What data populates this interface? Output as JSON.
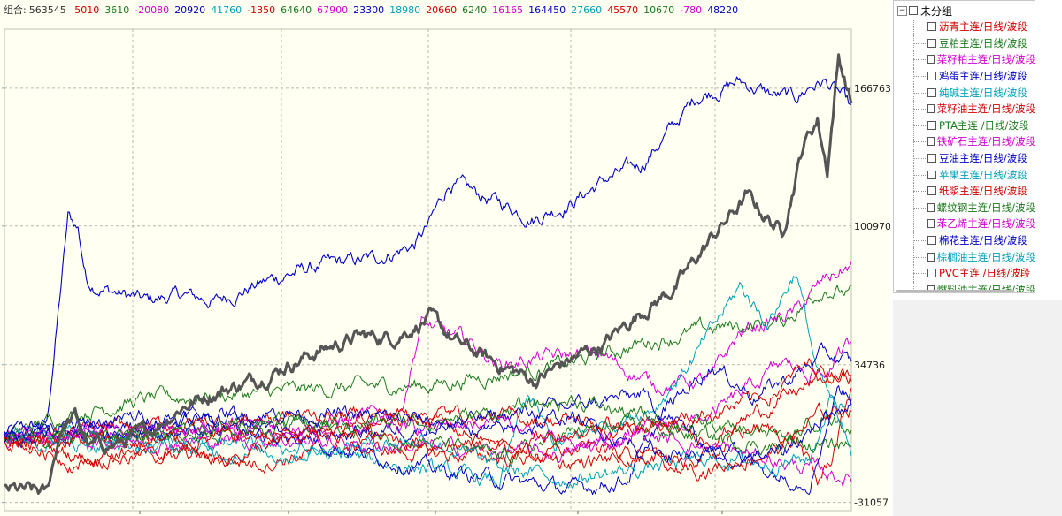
{
  "summary": {
    "label": "组合:",
    "total": "563545",
    "items": [
      {
        "text": "5010",
        "color": "#d40000"
      },
      {
        "text": "3610",
        "color": "#1a7a1a"
      },
      {
        "text": "-20080",
        "color": "#d000d0"
      },
      {
        "text": "20920",
        "color": "#0000c0"
      },
      {
        "text": "41760",
        "color": "#00a0b8"
      },
      {
        "text": "-1350",
        "color": "#d40000"
      },
      {
        "text": "64640",
        "color": "#1a7a1a"
      },
      {
        "text": "67900",
        "color": "#d000d0"
      },
      {
        "text": "23300",
        "color": "#0000c0"
      },
      {
        "text": "18980",
        "color": "#00a0b8"
      },
      {
        "text": "20660",
        "color": "#d40000"
      },
      {
        "text": "6240",
        "color": "#1a7a1a"
      },
      {
        "text": "16165",
        "color": "#d000d0"
      },
      {
        "text": "164450",
        "color": "#0000c0"
      },
      {
        "text": "27660",
        "color": "#00a0b8"
      },
      {
        "text": "45570",
        "color": "#d40000"
      },
      {
        "text": "10670",
        "color": "#1a7a1a"
      },
      {
        "text": "-780",
        "color": "#d000d0"
      },
      {
        "text": "48220",
        "color": "#0000c0"
      }
    ]
  },
  "tree": {
    "root_label": "未分组",
    "items": [
      {
        "label": "沥青主连/日线/波段",
        "color": "#d40000"
      },
      {
        "label": "豆粕主连/日线/波段",
        "color": "#1a7a1a"
      },
      {
        "label": "菜籽粕主连/日线/波段",
        "color": "#d000d0"
      },
      {
        "label": "鸡蛋主连/日线/波段",
        "color": "#0000c0"
      },
      {
        "label": "纯碱主连/日线/波段",
        "color": "#00a0b8"
      },
      {
        "label": "菜籽油主连/日线/波段",
        "color": "#d40000"
      },
      {
        "label": "PTA主连 /日线/波段",
        "color": "#1a7a1a"
      },
      {
        "label": "铁矿石主连/日线/波段",
        "color": "#d000d0"
      },
      {
        "label": "豆油主连/日线/波段",
        "color": "#0000c0"
      },
      {
        "label": "苹果主连/日线/波段",
        "color": "#00a0b8"
      },
      {
        "label": "纸浆主连/日线/波段",
        "color": "#d40000"
      },
      {
        "label": "螺纹钢主连/日线/波段",
        "color": "#1a7a1a"
      },
      {
        "label": "苯乙烯主连/日线/波段",
        "color": "#d000d0"
      },
      {
        "label": "棉花主连/日线/波段",
        "color": "#0000c0"
      },
      {
        "label": "棕榈油主连/日线/波段",
        "color": "#00a0b8"
      },
      {
        "label": "PVC主连 /日线/波段",
        "color": "#d40000"
      },
      {
        "label": "燃料油主连/日线/波段",
        "color": "#1a7a1a"
      }
    ]
  },
  "chart_data": {
    "type": "line",
    "y_ticks": [
      "166763",
      "100970",
      "34736",
      "-31057"
    ],
    "y_tick_values": [
      166763,
      100970,
      34736,
      -31057
    ],
    "ylim": [
      -35000,
      195000
    ],
    "n_points": 600,
    "grid": true,
    "series": [
      {
        "color": "#0000c8",
        "width": 1.1,
        "anchors": [
          [
            0,
            2000
          ],
          [
            30,
            6000
          ],
          [
            45,
            105000
          ],
          [
            52,
            100000
          ],
          [
            58,
            75000
          ],
          [
            75,
            70000
          ],
          [
            100,
            65000
          ],
          [
            125,
            68000
          ],
          [
            150,
            65000
          ],
          [
            175,
            72000
          ],
          [
            200,
            78000
          ],
          [
            225,
            82000
          ],
          [
            260,
            85000
          ],
          [
            290,
            92000
          ],
          [
            300,
            101000
          ],
          [
            315,
            122000
          ],
          [
            330,
            117000
          ],
          [
            350,
            112000
          ],
          [
            375,
            105000
          ],
          [
            400,
            112000
          ],
          [
            425,
            123000
          ],
          [
            450,
            130000
          ],
          [
            475,
            150000
          ],
          [
            490,
            163000
          ],
          [
            520,
            170000
          ],
          [
            545,
            163000
          ],
          [
            560,
            162000
          ],
          [
            570,
            168000
          ],
          [
            580,
            170000
          ],
          [
            592,
            163000
          ],
          [
            599,
            156000
          ]
        ]
      },
      {
        "color": "#555555",
        "width": 3,
        "anchors": [
          [
            0,
            -25000
          ],
          [
            30,
            -27000
          ],
          [
            40,
            5000
          ],
          [
            50,
            10000
          ],
          [
            60,
            -5000
          ],
          [
            80,
            -3000
          ],
          [
            100,
            2000
          ],
          [
            125,
            15000
          ],
          [
            150,
            22000
          ],
          [
            175,
            27000
          ],
          [
            200,
            35000
          ],
          [
            225,
            42000
          ],
          [
            250,
            48000
          ],
          [
            275,
            48000
          ],
          [
            300,
            57000
          ],
          [
            320,
            45000
          ],
          [
            340,
            38000
          ],
          [
            375,
            27000
          ],
          [
            400,
            37000
          ],
          [
            425,
            45000
          ],
          [
            450,
            60000
          ],
          [
            475,
            72000
          ],
          [
            500,
            95000
          ],
          [
            525,
            115000
          ],
          [
            535,
            108000
          ],
          [
            550,
            98000
          ],
          [
            565,
            140000
          ],
          [
            575,
            152000
          ],
          [
            582,
            128000
          ],
          [
            590,
            182000
          ],
          [
            599,
            160000
          ]
        ]
      },
      {
        "color": "#1a7a1a",
        "width": 1,
        "anchors": [
          [
            0,
            0
          ],
          [
            50,
            12000
          ],
          [
            100,
            18000
          ],
          [
            150,
            20000
          ],
          [
            200,
            22000
          ],
          [
            250,
            24000
          ],
          [
            300,
            25000
          ],
          [
            350,
            30000
          ],
          [
            400,
            35000
          ],
          [
            450,
            45000
          ],
          [
            500,
            52000
          ],
          [
            550,
            55000
          ],
          [
            580,
            72000
          ],
          [
            599,
            68000
          ]
        ]
      },
      {
        "color": "#d000d0",
        "width": 1,
        "anchors": [
          [
            0,
            0
          ],
          [
            80,
            2000
          ],
          [
            160,
            5000
          ],
          [
            240,
            8000
          ],
          [
            280,
            12000
          ],
          [
            295,
            55000
          ],
          [
            310,
            50000
          ],
          [
            330,
            45000
          ],
          [
            350,
            35000
          ],
          [
            380,
            38000
          ],
          [
            420,
            40000
          ],
          [
            460,
            25000
          ],
          [
            500,
            28000
          ],
          [
            520,
            50000
          ],
          [
            540,
            55000
          ],
          [
            560,
            60000
          ],
          [
            580,
            75000
          ],
          [
            599,
            82000
          ]
        ]
      },
      {
        "color": "#00a0b8",
        "width": 1,
        "anchors": [
          [
            0,
            0
          ],
          [
            100,
            -2000
          ],
          [
            200,
            -5000
          ],
          [
            300,
            -15000
          ],
          [
            350,
            -22000
          ],
          [
            370,
            20000
          ],
          [
            390,
            -5000
          ],
          [
            420,
            5000
          ],
          [
            460,
            15000
          ],
          [
            490,
            40000
          ],
          [
            520,
            72000
          ],
          [
            540,
            55000
          ],
          [
            560,
            80000
          ],
          [
            575,
            30000
          ],
          [
            590,
            10000
          ],
          [
            599,
            20000
          ]
        ]
      },
      {
        "color": "#d40000",
        "width": 1,
        "anchors": [
          [
            0,
            0
          ],
          [
            60,
            -10000
          ],
          [
            120,
            -8000
          ],
          [
            180,
            -12000
          ],
          [
            240,
            -5000
          ],
          [
            300,
            -8000
          ],
          [
            360,
            -10000
          ],
          [
            420,
            -5000
          ],
          [
            480,
            -15000
          ],
          [
            530,
            5000
          ],
          [
            560,
            0
          ],
          [
            575,
            -22000
          ],
          [
            585,
            -10000
          ],
          [
            599,
            25000
          ]
        ]
      },
      {
        "color": "#0000c0",
        "width": 1,
        "anchors": [
          [
            0,
            0
          ],
          [
            80,
            5000
          ],
          [
            160,
            10000
          ],
          [
            240,
            -5000
          ],
          [
            300,
            -15000
          ],
          [
            350,
            -20000
          ],
          [
            400,
            -25000
          ],
          [
            440,
            -20000
          ],
          [
            470,
            15000
          ],
          [
            500,
            35000
          ],
          [
            530,
            20000
          ],
          [
            560,
            30000
          ],
          [
            580,
            40000
          ],
          [
            599,
            35000
          ]
        ]
      },
      {
        "color": "#d000d0",
        "width": 1,
        "anchors": [
          [
            0,
            0
          ],
          [
            100,
            -2000
          ],
          [
            200,
            -1000
          ],
          [
            300,
            -5000
          ],
          [
            400,
            -8000
          ],
          [
            450,
            2000
          ],
          [
            500,
            -5000
          ],
          [
            540,
            -10000
          ],
          [
            570,
            -15000
          ],
          [
            599,
            -20000
          ]
        ]
      },
      {
        "color": "#d40000",
        "width": 1,
        "anchors": [
          [
            0,
            0
          ],
          [
            100,
            5000
          ],
          [
            200,
            10000
          ],
          [
            300,
            12000
          ],
          [
            400,
            8000
          ],
          [
            450,
            5000
          ],
          [
            500,
            0
          ],
          [
            540,
            15000
          ],
          [
            570,
            25000
          ],
          [
            599,
            30000
          ]
        ]
      },
      {
        "color": "#1a7a1a",
        "width": 1,
        "anchors": [
          [
            0,
            0
          ],
          [
            100,
            3000
          ],
          [
            200,
            8000
          ],
          [
            300,
            -2000
          ],
          [
            350,
            -10000
          ],
          [
            400,
            2000
          ],
          [
            450,
            5000
          ],
          [
            500,
            0
          ],
          [
            550,
            -5000
          ],
          [
            580,
            12000
          ],
          [
            599,
            5000
          ]
        ]
      },
      {
        "color": "#0000c0",
        "width": 1,
        "anchors": [
          [
            0,
            0
          ],
          [
            100,
            3000
          ],
          [
            200,
            0
          ],
          [
            300,
            5000
          ],
          [
            400,
            15000
          ],
          [
            450,
            20000
          ],
          [
            500,
            -5000
          ],
          [
            550,
            -18000
          ],
          [
            570,
            -20000
          ],
          [
            590,
            25000
          ],
          [
            599,
            20000
          ]
        ]
      },
      {
        "color": "#00a0b8",
        "width": 1,
        "anchors": [
          [
            0,
            0
          ],
          [
            100,
            -5000
          ],
          [
            200,
            -8000
          ],
          [
            300,
            0
          ],
          [
            350,
            -15000
          ],
          [
            400,
            -20000
          ],
          [
            450,
            -15000
          ],
          [
            500,
            -10000
          ],
          [
            540,
            -12000
          ],
          [
            570,
            -10000
          ],
          [
            585,
            20000
          ],
          [
            599,
            -5000
          ]
        ]
      },
      {
        "color": "#d000d0",
        "width": 1,
        "anchors": [
          [
            0,
            0
          ],
          [
            100,
            4000
          ],
          [
            200,
            2000
          ],
          [
            300,
            5000
          ],
          [
            350,
            8000
          ],
          [
            400,
            -5000
          ],
          [
            450,
            3000
          ],
          [
            500,
            10000
          ],
          [
            550,
            35000
          ],
          [
            580,
            30000
          ],
          [
            599,
            45000
          ]
        ]
      },
      {
        "color": "#d40000",
        "width": 1,
        "anchors": [
          [
            0,
            0
          ],
          [
            50,
            -12000
          ],
          [
            100,
            -5000
          ],
          [
            150,
            -10000
          ],
          [
            200,
            -3000
          ],
          [
            250,
            5000
          ],
          [
            300,
            10000
          ],
          [
            350,
            -5000
          ],
          [
            400,
            -12000
          ],
          [
            450,
            -10000
          ],
          [
            500,
            -15000
          ],
          [
            550,
            -5000
          ],
          [
            575,
            10000
          ],
          [
            599,
            15000
          ]
        ]
      },
      {
        "color": "#1a7a1a",
        "width": 1,
        "anchors": [
          [
            0,
            0
          ],
          [
            100,
            2000
          ],
          [
            200,
            5000
          ],
          [
            300,
            8000
          ],
          [
            350,
            12000
          ],
          [
            400,
            18000
          ],
          [
            450,
            10000
          ],
          [
            500,
            5000
          ],
          [
            550,
            0
          ],
          [
            580,
            -5000
          ],
          [
            599,
            -2000
          ]
        ]
      },
      {
        "color": "#0000c0",
        "width": 1,
        "anchors": [
          [
            0,
            0
          ],
          [
            100,
            10000
          ],
          [
            200,
            12000
          ],
          [
            300,
            8000
          ],
          [
            350,
            2000
          ],
          [
            400,
            10000
          ],
          [
            450,
            -5000
          ],
          [
            500,
            -10000
          ],
          [
            550,
            -8000
          ],
          [
            580,
            10000
          ],
          [
            599,
            18000
          ]
        ]
      },
      {
        "color": "#d40000",
        "width": 1,
        "anchors": [
          [
            0,
            0
          ],
          [
            100,
            -3000
          ],
          [
            200,
            2000
          ],
          [
            300,
            -2000
          ],
          [
            350,
            -5000
          ],
          [
            400,
            3000
          ],
          [
            450,
            5000
          ],
          [
            500,
            12000
          ],
          [
            540,
            20000
          ],
          [
            570,
            35000
          ],
          [
            599,
            30000
          ]
        ]
      }
    ]
  }
}
